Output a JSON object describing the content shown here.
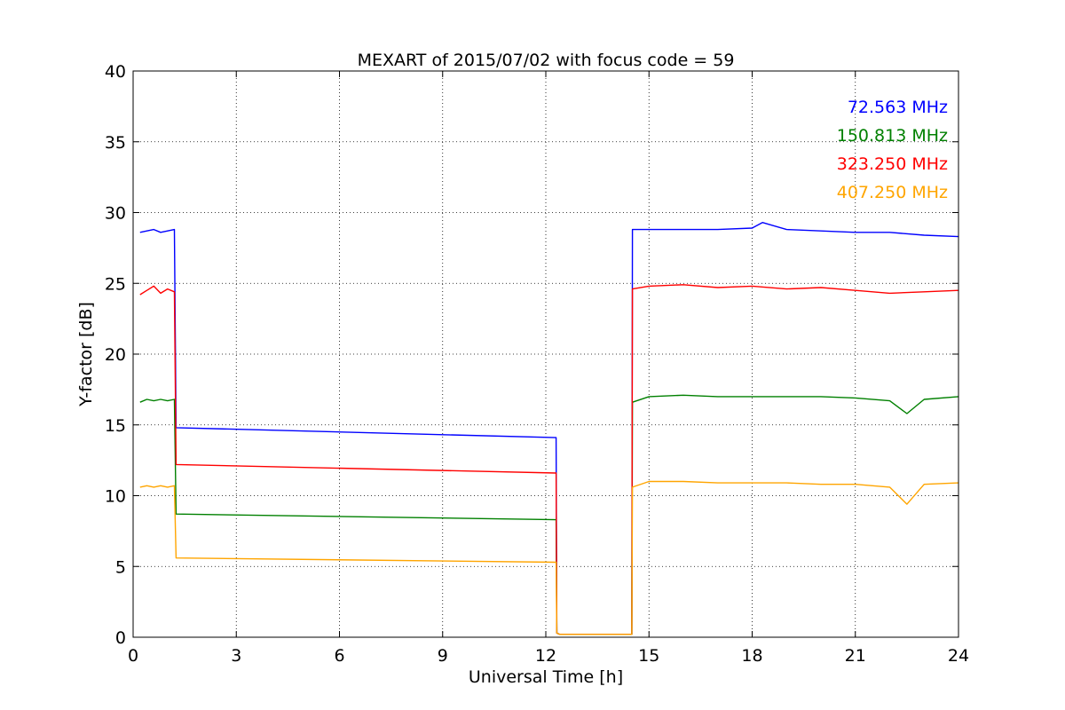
{
  "chart_data": {
    "type": "line",
    "title": "MEXART of 2015/07/02 with focus code = 59",
    "xlabel": "Universal Time [h]",
    "ylabel": "Y-factor [dB]",
    "xlim": [
      0,
      24
    ],
    "ylim": [
      0,
      40
    ],
    "xticks": [
      "0",
      "3",
      "6",
      "9",
      "12",
      "15",
      "18",
      "21",
      "24"
    ],
    "yticks": [
      "0",
      "5",
      "10",
      "15",
      "20",
      "25",
      "30",
      "35",
      "40"
    ],
    "grid": true,
    "legend_position": "top-right",
    "series": [
      {
        "name": "72.563 MHz",
        "color": "#0000ff",
        "x": [
          0.2,
          0.4,
          0.6,
          0.8,
          1.0,
          1.2,
          1.25,
          12.3,
          12.32,
          12.4,
          14.5,
          14.52,
          15.0,
          16.0,
          17.0,
          18.0,
          18.3,
          19.0,
          20.0,
          21.0,
          22.0,
          23.0,
          24.0
        ],
        "y": [
          28.6,
          28.7,
          28.8,
          28.6,
          28.7,
          28.8,
          14.8,
          14.1,
          0.3,
          0.2,
          0.2,
          28.8,
          28.8,
          28.8,
          28.8,
          28.9,
          29.3,
          28.8,
          28.7,
          28.6,
          28.6,
          28.4,
          28.3
        ]
      },
      {
        "name": "150.813 MHz",
        "color": "#008000",
        "x": [
          0.2,
          0.4,
          0.6,
          0.8,
          1.0,
          1.2,
          1.25,
          12.3,
          12.32,
          12.4,
          14.5,
          14.52,
          15.0,
          16.0,
          17.0,
          18.0,
          19.0,
          20.0,
          21.0,
          22.0,
          22.5,
          23.0,
          24.0
        ],
        "y": [
          16.6,
          16.8,
          16.7,
          16.8,
          16.7,
          16.8,
          8.7,
          8.3,
          0.3,
          0.2,
          0.2,
          16.6,
          17.0,
          17.1,
          17.0,
          17.0,
          17.0,
          17.0,
          16.9,
          16.7,
          15.8,
          16.8,
          17.0
        ]
      },
      {
        "name": "323.250 MHz",
        "color": "#ff0000",
        "x": [
          0.2,
          0.4,
          0.6,
          0.8,
          1.0,
          1.2,
          1.25,
          12.3,
          12.32,
          12.4,
          14.5,
          14.52,
          15.0,
          16.0,
          17.0,
          18.0,
          19.0,
          20.0,
          21.0,
          22.0,
          23.0,
          24.0
        ],
        "y": [
          24.2,
          24.5,
          24.8,
          24.3,
          24.6,
          24.4,
          12.2,
          11.6,
          0.3,
          0.2,
          0.2,
          24.6,
          24.8,
          24.9,
          24.7,
          24.8,
          24.6,
          24.7,
          24.5,
          24.3,
          24.4,
          24.5
        ]
      },
      {
        "name": "407.250 MHz",
        "color": "#ffa500",
        "x": [
          0.2,
          0.4,
          0.6,
          0.8,
          1.0,
          1.2,
          1.25,
          12.3,
          12.32,
          12.4,
          14.5,
          14.52,
          15.0,
          16.0,
          17.0,
          18.0,
          19.0,
          20.0,
          21.0,
          22.0,
          22.5,
          23.0,
          24.0
        ],
        "y": [
          10.6,
          10.7,
          10.6,
          10.7,
          10.6,
          10.7,
          5.6,
          5.3,
          0.3,
          0.2,
          0.2,
          10.6,
          11.0,
          11.0,
          10.9,
          10.9,
          10.9,
          10.8,
          10.8,
          10.6,
          9.4,
          10.8,
          10.9
        ]
      }
    ]
  }
}
